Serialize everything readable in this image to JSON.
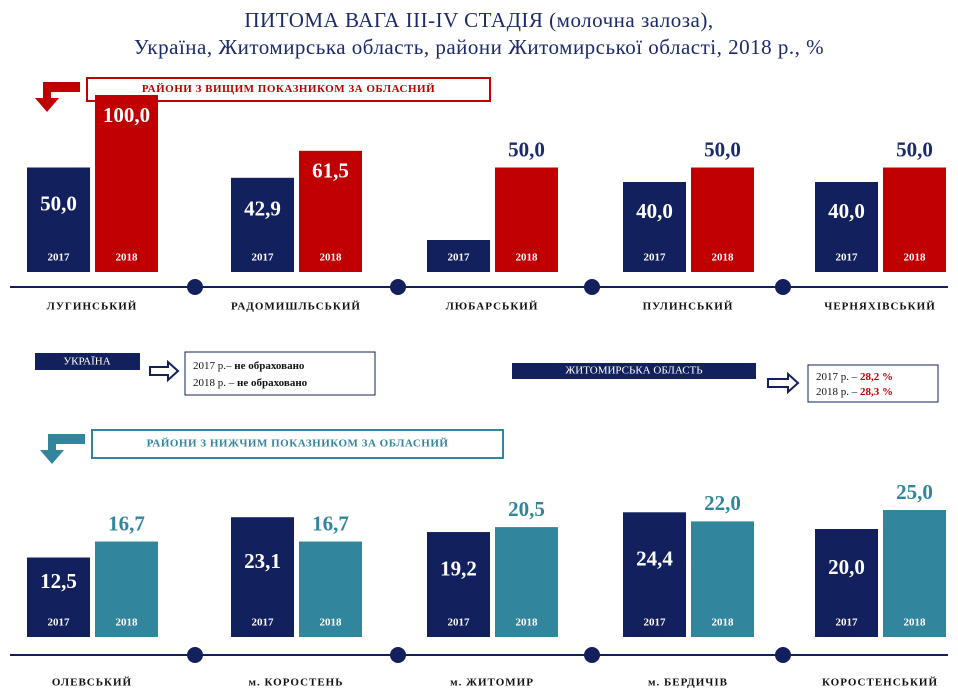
{
  "title": [
    "ПИТОМА ВАГА III-IV СТАДІЯ (молочна залоза),",
    "Україна, Житомирська область, райони Житомирської області, 2018 р., %"
  ],
  "panels": [
    {
      "label": "РАЙОНИ З ВИЩИМ ПОКАЗНИКОМ ЗА ОБЛАСНИЙ",
      "color": "#c00000",
      "label_color": "#1b2a6b",
      "ylim": [
        0,
        100
      ],
      "years": [
        "2017",
        "2018"
      ],
      "districts": [
        {
          "name": "ЛУГИНСЬКИЙ",
          "values": [
            50.0,
            100.0
          ],
          "value_labels": [
            "50,0",
            "100,0"
          ]
        },
        {
          "name": "РАДОМИШЛЬСЬКИЙ",
          "values": [
            42.9,
            61.5
          ],
          "value_labels": [
            "42,9",
            "61,5"
          ]
        },
        {
          "name": "ЛЮБАРСЬКИЙ",
          "values": [
            0,
            50.0
          ],
          "value_labels": [
            null,
            "50,0"
          ]
        },
        {
          "name": "ПУЛИНСЬКИЙ",
          "values": [
            40.0,
            50.0
          ],
          "value_labels": [
            "40,0",
            "50,0"
          ]
        },
        {
          "name": "ЧЕРНЯХІВСЬКИЙ",
          "values": [
            40.0,
            50.0
          ],
          "value_labels": [
            "40,0",
            "50,0"
          ]
        }
      ]
    },
    {
      "label": "РАЙОНИ З НИЖЧИМ ПОКАЗНИКОМ ЗА ОБЛАСНИЙ",
      "color": "#31859c",
      "label_color": "#31859c",
      "ylim": [
        0,
        25
      ],
      "years": [
        "2017",
        "2018"
      ],
      "districts": [
        {
          "name": "ОЛЕВСЬКИЙ",
          "values": [
            12.5,
            16.7
          ],
          "value_labels": [
            "12,5",
            "16,7"
          ]
        },
        {
          "name": "м. КОРОСТЕНЬ",
          "values": [
            23.1,
            16.7
          ],
          "value_labels": [
            "23,1",
            "16,7"
          ]
        },
        {
          "name": "м. ЖИТОМИР",
          "values": [
            19.2,
            20.5
          ],
          "value_labels": [
            "19,2",
            "20,5"
          ]
        },
        {
          "name": "м. БЕРДИЧІВ",
          "values": [
            24.4,
            22.0
          ],
          "value_labels": [
            "24,4",
            "22,0"
          ]
        },
        {
          "name": "КОРОСТЕНСЬКИЙ",
          "values": [
            20.0,
            25.0
          ],
          "value_labels": [
            "20,0",
            "25,0"
          ]
        }
      ]
    }
  ],
  "ukraine": {
    "label": "УКРАЇНА",
    "rows": [
      {
        "year": "2017 р.–",
        "value": "не обраховано"
      },
      {
        "year": "2018 р. –",
        "value": "не обраховано"
      }
    ]
  },
  "region": {
    "label": "ЖИТОМИРСЬКА ОБЛАСТЬ",
    "rows": [
      {
        "year": "2017 р. –",
        "value": "28,2 %"
      },
      {
        "year": "2018 р. –",
        "value": "28,3 %"
      }
    ]
  }
}
